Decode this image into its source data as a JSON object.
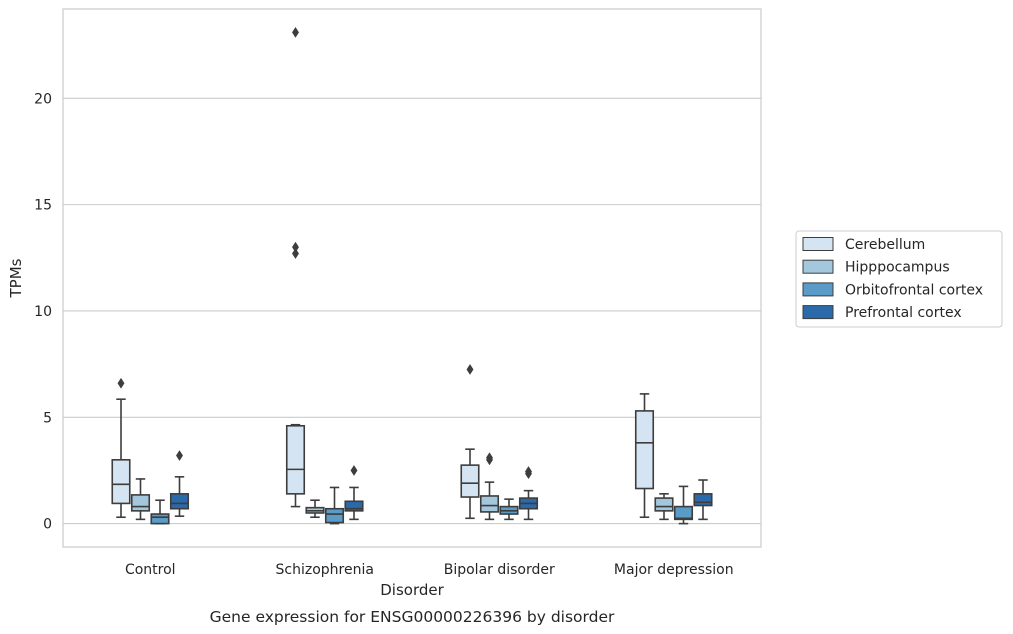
{
  "chart_data": {
    "type": "box",
    "title": "",
    "caption": "Gene expression for ENSG00000226396 by disorder",
    "xlabel": "Disorder",
    "ylabel": "TPMs",
    "ylim": [
      -1.1,
      24.2
    ],
    "yticks": [
      0,
      5,
      10,
      15,
      20
    ],
    "grid": "horizontal",
    "legend_position": "right",
    "categories": [
      "Control",
      "Schizophrenia",
      "Bipolar disorder",
      "Major depression"
    ],
    "series": [
      {
        "name": "Cerebellum",
        "color": "#d5e4f2",
        "boxes": [
          {
            "whislo": 0.3,
            "q1": 0.95,
            "med": 1.85,
            "q3": 3.0,
            "whishi": 5.85,
            "fliers": [
              6.6
            ]
          },
          {
            "whislo": 0.8,
            "q1": 1.4,
            "med": 2.55,
            "q3": 4.6,
            "whishi": 4.65,
            "fliers": [
              12.7,
              13.0,
              23.1
            ]
          },
          {
            "whislo": 0.25,
            "q1": 1.25,
            "med": 1.9,
            "q3": 2.75,
            "whishi": 3.5,
            "fliers": [
              7.25
            ]
          },
          {
            "whislo": 0.3,
            "q1": 1.65,
            "med": 3.8,
            "q3": 5.3,
            "whishi": 6.1,
            "fliers": []
          }
        ]
      },
      {
        "name": "Hipppocampus",
        "color": "#a3c8de",
        "boxes": [
          {
            "whislo": 0.2,
            "q1": 0.6,
            "med": 0.8,
            "q3": 1.35,
            "whishi": 2.1,
            "fliers": []
          },
          {
            "whislo": 0.3,
            "q1": 0.5,
            "med": 0.6,
            "q3": 0.75,
            "whishi": 1.1,
            "fliers": []
          },
          {
            "whislo": 0.2,
            "q1": 0.55,
            "med": 0.85,
            "q3": 1.3,
            "whishi": 1.95,
            "fliers": [
              3.0,
              3.1
            ]
          },
          {
            "whislo": 0.2,
            "q1": 0.6,
            "med": 0.8,
            "q3": 1.2,
            "whishi": 1.4,
            "fliers": []
          }
        ]
      },
      {
        "name": "Orbitofrontal cortex",
        "color": "#5a9bc8",
        "boxes": [
          {
            "whislo": 0.0,
            "q1": 0.0,
            "med": 0.3,
            "q3": 0.45,
            "whishi": 1.1,
            "fliers": []
          },
          {
            "whislo": 0.0,
            "q1": 0.05,
            "med": 0.45,
            "q3": 0.7,
            "whishi": 1.7,
            "fliers": []
          },
          {
            "whislo": 0.2,
            "q1": 0.45,
            "med": 0.6,
            "q3": 0.8,
            "whishi": 1.15,
            "fliers": []
          },
          {
            "whislo": 0.0,
            "q1": 0.2,
            "med": 0.25,
            "q3": 0.8,
            "whishi": 1.75,
            "fliers": []
          }
        ]
      },
      {
        "name": "Prefrontal cortex",
        "color": "#2a6aab",
        "boxes": [
          {
            "whislo": 0.35,
            "q1": 0.7,
            "med": 0.95,
            "q3": 1.4,
            "whishi": 2.2,
            "fliers": [
              3.2
            ]
          },
          {
            "whislo": 0.2,
            "q1": 0.6,
            "med": 0.7,
            "q3": 1.05,
            "whishi": 1.7,
            "fliers": [
              2.5
            ]
          },
          {
            "whislo": 0.2,
            "q1": 0.7,
            "med": 0.95,
            "q3": 1.2,
            "whishi": 1.55,
            "fliers": [
              2.35,
              2.45
            ]
          },
          {
            "whislo": 0.2,
            "q1": 0.85,
            "med": 1.0,
            "q3": 1.4,
            "whishi": 2.05,
            "fliers": []
          }
        ]
      }
    ]
  }
}
